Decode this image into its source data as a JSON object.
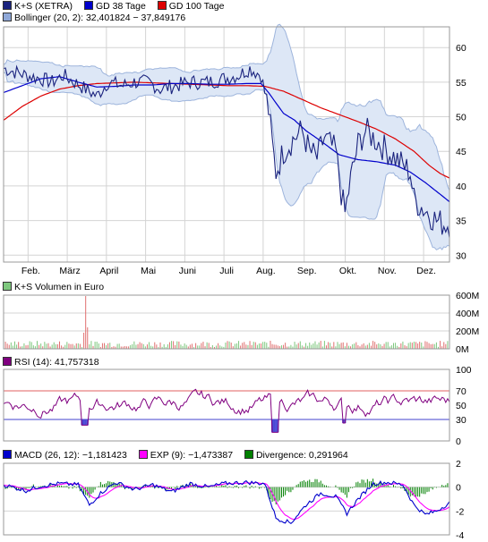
{
  "chart_data": [
    {
      "type": "line",
      "name": "price",
      "legend": [
        {
          "label": "K+S (XETRA)",
          "color": "#1a237e"
        },
        {
          "label": "GD 38 Tage",
          "color": "#0000cc"
        },
        {
          "label": "GD 100 Tage",
          "color": "#dd0000"
        },
        {
          "label": "Bollinger (20, 2): 32,401824 − 37,849176",
          "color": "#8fa8d8"
        }
      ],
      "ylim": [
        29,
        63
      ],
      "yticks": [
        30,
        35,
        40,
        45,
        50,
        55,
        60
      ],
      "months": [
        "Feb.",
        "März",
        "April",
        "Mai",
        "Juni",
        "Juli",
        "Aug.",
        "Sep.",
        "Okt.",
        "Nov.",
        "Dez."
      ],
      "price_anchors": [
        [
          0,
          57
        ],
        [
          6,
          56.5
        ],
        [
          12,
          56
        ],
        [
          20,
          55.5
        ],
        [
          26,
          55
        ],
        [
          32,
          56
        ],
        [
          38,
          55
        ],
        [
          44,
          54
        ],
        [
          50,
          53
        ],
        [
          56,
          55
        ],
        [
          64,
          54.5
        ],
        [
          70,
          55
        ],
        [
          78,
          55
        ],
        [
          84,
          54
        ],
        [
          92,
          54.5
        ],
        [
          100,
          55
        ],
        [
          110,
          55
        ],
        [
          118,
          55.5
        ],
        [
          126,
          56
        ],
        [
          132,
          57
        ],
        [
          138,
          56
        ],
        [
          142,
          51
        ],
        [
          144,
          46
        ],
        [
          146,
          42
        ],
        [
          150,
          45
        ],
        [
          156,
          47
        ],
        [
          160,
          48
        ],
        [
          164,
          45
        ],
        [
          168,
          44
        ],
        [
          172,
          47
        ],
        [
          178,
          45
        ],
        [
          181,
          39
        ],
        [
          183,
          36
        ],
        [
          186,
          41
        ],
        [
          190,
          46
        ],
        [
          194,
          48
        ],
        [
          198,
          47
        ],
        [
          202,
          46
        ],
        [
          206,
          45
        ],
        [
          210,
          44
        ],
        [
          214,
          43
        ],
        [
          218,
          42
        ],
        [
          220,
          38
        ],
        [
          224,
          37
        ],
        [
          228,
          36
        ],
        [
          232,
          35
        ],
        [
          236,
          34.5
        ],
        [
          240,
          34.5
        ]
      ],
      "ma38_anchors": [
        [
          0,
          53.5
        ],
        [
          10,
          54.5
        ],
        [
          20,
          55.5
        ],
        [
          30,
          55.8
        ],
        [
          40,
          55
        ],
        [
          50,
          54.3
        ],
        [
          60,
          54.4
        ],
        [
          70,
          54.6
        ],
        [
          80,
          54.6
        ],
        [
          90,
          54.8
        ],
        [
          100,
          54.8
        ],
        [
          110,
          54.7
        ],
        [
          120,
          54.7
        ],
        [
          130,
          54.8
        ],
        [
          138,
          54.8
        ],
        [
          142,
          53.5
        ],
        [
          146,
          52
        ],
        [
          150,
          50.5
        ],
        [
          156,
          49.5
        ],
        [
          162,
          48
        ],
        [
          170,
          46.5
        ],
        [
          176,
          45.3
        ],
        [
          180,
          44.5
        ],
        [
          190,
          43.8
        ],
        [
          200,
          43.5
        ],
        [
          210,
          43
        ],
        [
          218,
          42
        ],
        [
          226,
          40.5
        ],
        [
          234,
          38.8
        ],
        [
          240,
          37.5
        ]
      ],
      "ma100_anchors": [
        [
          0,
          49.5
        ],
        [
          10,
          51.5
        ],
        [
          20,
          53
        ],
        [
          30,
          54
        ],
        [
          40,
          54.5
        ],
        [
          50,
          54.8
        ],
        [
          60,
          54.9
        ],
        [
          70,
          55
        ],
        [
          80,
          54.9
        ],
        [
          90,
          54.8
        ],
        [
          100,
          54.7
        ],
        [
          110,
          54.6
        ],
        [
          120,
          54.5
        ],
        [
          130,
          54.5
        ],
        [
          140,
          54.4
        ],
        [
          150,
          53.7
        ],
        [
          160,
          52.5
        ],
        [
          170,
          51.3
        ],
        [
          180,
          50.3
        ],
        [
          190,
          49.3
        ],
        [
          200,
          48.2
        ],
        [
          210,
          46.8
        ],
        [
          220,
          45
        ],
        [
          228,
          43
        ],
        [
          234,
          41.8
        ],
        [
          240,
          41
        ]
      ]
    },
    {
      "type": "bar",
      "name": "volume",
      "legend": [
        {
          "label": "K+S Volumen in Euro",
          "color": "#7ec87e"
        }
      ],
      "ylim": [
        0,
        600
      ],
      "ytick_labels": [
        "600M",
        "400M",
        "200M",
        "0M"
      ],
      "spike_day": 44,
      "spike_value": 590,
      "baseline_value": 55
    },
    {
      "type": "line",
      "name": "rsi",
      "legend": [
        {
          "label": "RSI (14): 41,757318",
          "color": "#800080"
        }
      ],
      "ylim": [
        0,
        100
      ],
      "yticks": [
        0,
        30,
        50,
        70,
        100
      ],
      "overbought": 70,
      "oversold": 30
    },
    {
      "type": "line",
      "name": "macd",
      "legend": [
        {
          "label": "MACD (26, 12): −1,181423",
          "color": "#0000cc"
        },
        {
          "label": "EXP (9): −1,473387",
          "color": "#ff00ff"
        },
        {
          "label": "Divergence: 0,291964",
          "color": "#008000"
        }
      ],
      "ylim": [
        -4,
        2
      ],
      "yticks": [
        2,
        0,
        -2,
        -4
      ]
    }
  ],
  "colors": {
    "price": "#1a237e",
    "ma38": "#0000cc",
    "ma100": "#dd0000",
    "band_fill": "#dde7f6",
    "band_line": "#9db4dc",
    "vol_up": "#7ec87e",
    "vol_down": "#e07070",
    "rsi": "#800080",
    "rsi_70": "#e06060",
    "rsi_30": "#4040cc",
    "macd": "#0000cc",
    "signal": "#ff00ff",
    "divergence": "#008000",
    "grid": "#d4d4d4"
  }
}
